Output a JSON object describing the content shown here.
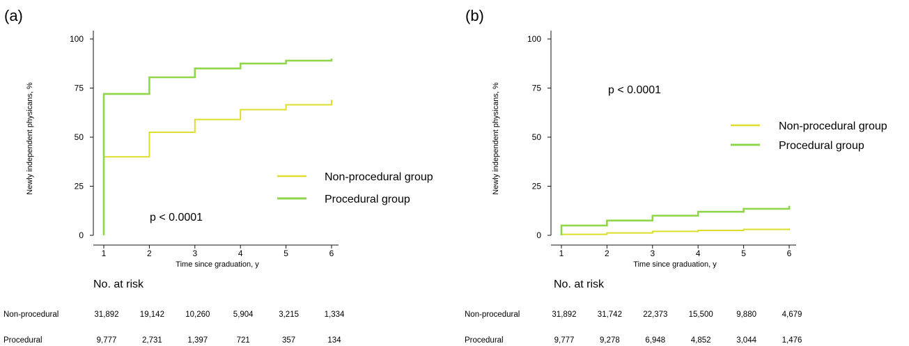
{
  "colors": {
    "non_procedural": "#dede2a",
    "procedural": "#8fd64a",
    "axis": "#111111"
  },
  "chart_data": [
    {
      "panel_label": "(a)",
      "type": "line",
      "step": true,
      "xlabel": "Time since graduation, y",
      "ylabel": "Newly independent physicans, %",
      "x_ticks": [
        "1",
        "2",
        "3",
        "4",
        "5",
        "6"
      ],
      "y_ticks": [
        "0",
        "25",
        "50",
        "75",
        "100"
      ],
      "xlim": [
        1,
        6
      ],
      "ylim": [
        0,
        100
      ],
      "grid": false,
      "legend_position": "center-right",
      "annotation": "p < 0.0001",
      "x": [
        1,
        2,
        3,
        4,
        5,
        6
      ],
      "series": [
        {
          "name": "Non-procedural group",
          "color_key": "non_procedural",
          "values": [
            40,
            52.5,
            59,
            64,
            66.5,
            69
          ]
        },
        {
          "name": "Procedural group",
          "color_key": "procedural",
          "values": [
            72,
            80.5,
            85,
            87.5,
            89,
            90
          ]
        }
      ],
      "risk_table": {
        "title": "No. at risk",
        "rows": [
          {
            "label": "Non-procedural",
            "values": [
              "31,892",
              "19,142",
              "10,260",
              "5,904",
              "3,215",
              "1,334"
            ]
          },
          {
            "label": "Procedural",
            "values": [
              "9,777",
              "2,731",
              "1,397",
              "721",
              "357",
              "134"
            ]
          }
        ]
      }
    },
    {
      "panel_label": "(b)",
      "type": "line",
      "step": true,
      "xlabel": "Time since graduation, y",
      "ylabel": "Newly independent physicans, %",
      "x_ticks": [
        "1",
        "2",
        "3",
        "4",
        "5",
        "6"
      ],
      "y_ticks": [
        "0",
        "25",
        "50",
        "75",
        "100"
      ],
      "xlim": [
        1,
        6
      ],
      "ylim": [
        0,
        100
      ],
      "grid": false,
      "legend_position": "upper-right",
      "annotation": "p < 0.0001",
      "x": [
        1,
        2,
        3,
        4,
        5,
        6
      ],
      "series": [
        {
          "name": "Non-procedural group",
          "color_key": "non_procedural",
          "values": [
            0.5,
            1.2,
            2,
            2.5,
            3,
            3.5
          ]
        },
        {
          "name": "Procedural group",
          "color_key": "procedural",
          "values": [
            5,
            7.5,
            10,
            12,
            13.5,
            15
          ]
        }
      ],
      "risk_table": {
        "title": "No. at risk",
        "rows": [
          {
            "label": "Non-procedural",
            "values": [
              "31,892",
              "31,742",
              "22,373",
              "15,500",
              "9,880",
              "4,679"
            ]
          },
          {
            "label": "Procedural",
            "values": [
              "9,777",
              "9,278",
              "6,948",
              "4,852",
              "3,044",
              "1,476"
            ]
          }
        ]
      }
    }
  ]
}
